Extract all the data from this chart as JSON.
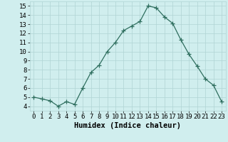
{
  "x": [
    0,
    1,
    2,
    3,
    4,
    5,
    6,
    7,
    8,
    9,
    10,
    11,
    12,
    13,
    14,
    15,
    16,
    17,
    18,
    19,
    20,
    21,
    22,
    23
  ],
  "y": [
    5.0,
    4.8,
    4.6,
    4.0,
    4.5,
    4.2,
    6.0,
    7.7,
    8.5,
    10.0,
    11.0,
    12.3,
    12.8,
    13.3,
    15.0,
    14.8,
    13.8,
    13.1,
    11.3,
    9.7,
    8.4,
    7.0,
    6.3,
    4.5
  ],
  "line_color": "#2e6e5e",
  "marker": "+",
  "marker_size": 4,
  "bg_color": "#d0eeee",
  "grid_color": "#b0d4d4",
  "xlabel": "Humidex (Indice chaleur)",
  "xlim": [
    -0.5,
    23.5
  ],
  "ylim": [
    3.5,
    15.5
  ],
  "yticks": [
    4,
    5,
    6,
    7,
    8,
    9,
    10,
    11,
    12,
    13,
    14,
    15
  ],
  "xticks": [
    0,
    1,
    2,
    3,
    4,
    5,
    6,
    7,
    8,
    9,
    10,
    11,
    12,
    13,
    14,
    15,
    16,
    17,
    18,
    19,
    20,
    21,
    22,
    23
  ],
  "xlabel_fontsize": 7.5,
  "tick_fontsize": 6.5
}
